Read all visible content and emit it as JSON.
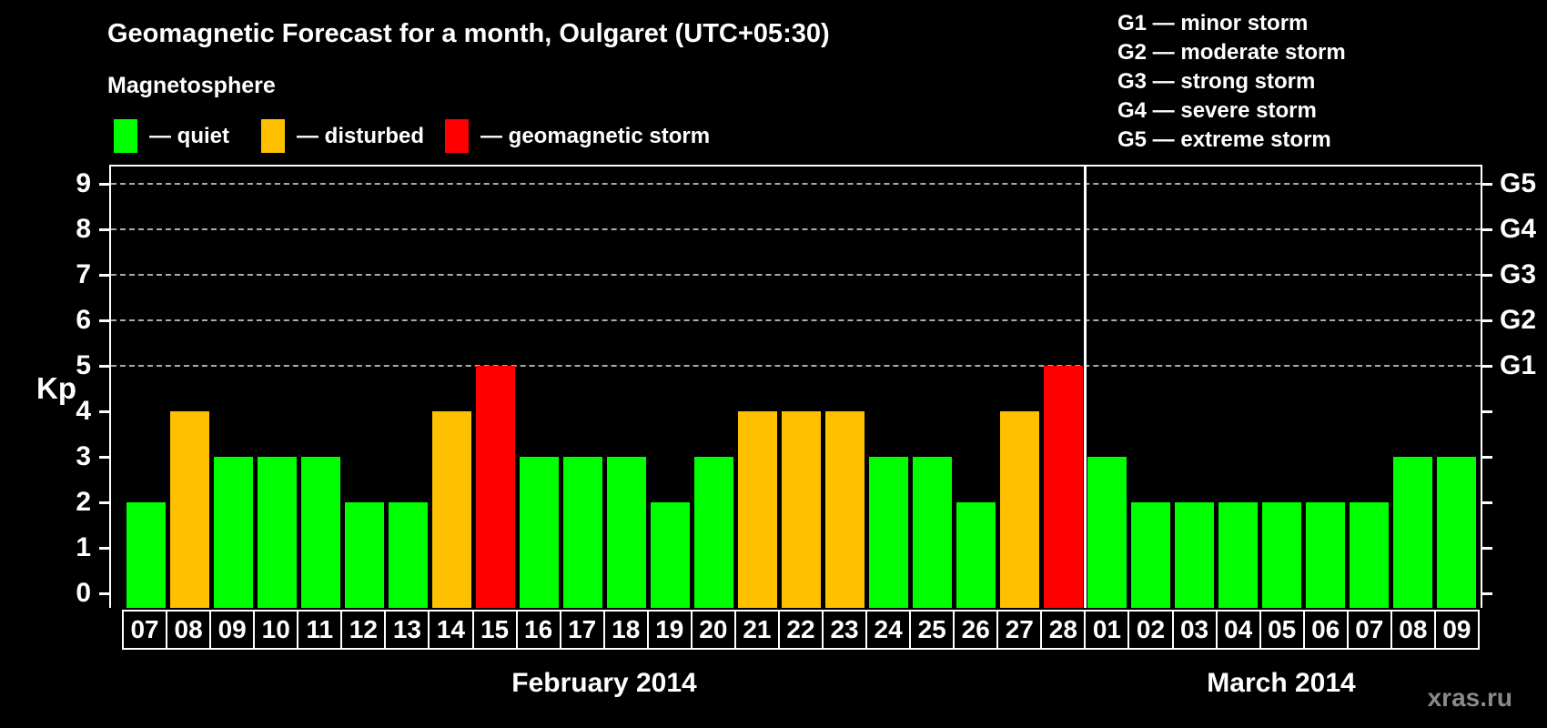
{
  "watermark": "xras.ru",
  "chart_data": {
    "type": "bar",
    "title": "Geomagnetic Forecast for a month, Oulgaret (UTC+05:30)",
    "legend_title": "Magnetosphere",
    "legend_items": [
      {
        "label": "— quiet",
        "status": "quiet",
        "color": "#00ff00"
      },
      {
        "label": "— disturbed",
        "status": "disturbed",
        "color": "#ffc000"
      },
      {
        "label": "— geomagnetic storm",
        "status": "storm",
        "color": "#ff0000"
      }
    ],
    "storm_scale": [
      "G1 — minor storm",
      "G2 — moderate storm",
      "G3 — strong storm",
      "G4 — severe storm",
      "G5 — extreme storm"
    ],
    "ylabel": "Kp",
    "xlabel": "",
    "ylim": [
      0,
      9
    ],
    "yticks": [
      0,
      1,
      2,
      3,
      4,
      5,
      6,
      7,
      8,
      9
    ],
    "gridlines_kp": [
      5,
      6,
      7,
      8,
      9
    ],
    "grid": "dashed-horizontal",
    "legend_position": "top",
    "right_axis": [
      {
        "text": "G1",
        "kp": 5
      },
      {
        "text": "G2",
        "kp": 6
      },
      {
        "text": "G3",
        "kp": 7
      },
      {
        "text": "G4",
        "kp": 8
      },
      {
        "text": "G5",
        "kp": 9
      }
    ],
    "status_colors": {
      "quiet": "#00ff00",
      "disturbed": "#ffc000",
      "storm": "#ff0000"
    },
    "months": [
      {
        "label": "February 2014",
        "bars": [
          {
            "day": "07",
            "kp": 2,
            "status": "quiet"
          },
          {
            "day": "08",
            "kp": 4,
            "status": "disturbed"
          },
          {
            "day": "09",
            "kp": 3,
            "status": "quiet"
          },
          {
            "day": "10",
            "kp": 3,
            "status": "quiet"
          },
          {
            "day": "11",
            "kp": 3,
            "status": "quiet"
          },
          {
            "day": "12",
            "kp": 2,
            "status": "quiet"
          },
          {
            "day": "13",
            "kp": 2,
            "status": "quiet"
          },
          {
            "day": "14",
            "kp": 4,
            "status": "disturbed"
          },
          {
            "day": "15",
            "kp": 5,
            "status": "storm"
          },
          {
            "day": "16",
            "kp": 3,
            "status": "quiet"
          },
          {
            "day": "17",
            "kp": 3,
            "status": "quiet"
          },
          {
            "day": "18",
            "kp": 3,
            "status": "quiet"
          },
          {
            "day": "19",
            "kp": 2,
            "status": "quiet"
          },
          {
            "day": "20",
            "kp": 3,
            "status": "quiet"
          },
          {
            "day": "21",
            "kp": 4,
            "status": "disturbed"
          },
          {
            "day": "22",
            "kp": 4,
            "status": "disturbed"
          },
          {
            "day": "23",
            "kp": 4,
            "status": "disturbed"
          },
          {
            "day": "24",
            "kp": 3,
            "status": "quiet"
          },
          {
            "day": "25",
            "kp": 3,
            "status": "quiet"
          },
          {
            "day": "26",
            "kp": 2,
            "status": "quiet"
          },
          {
            "day": "27",
            "kp": 4,
            "status": "disturbed"
          },
          {
            "day": "28",
            "kp": 5,
            "status": "storm"
          }
        ]
      },
      {
        "label": "March 2014",
        "bars": [
          {
            "day": "01",
            "kp": 3,
            "status": "quiet"
          },
          {
            "day": "02",
            "kp": 2,
            "status": "quiet"
          },
          {
            "day": "03",
            "kp": 2,
            "status": "quiet"
          },
          {
            "day": "04",
            "kp": 2,
            "status": "quiet"
          },
          {
            "day": "05",
            "kp": 2,
            "status": "quiet"
          },
          {
            "day": "06",
            "kp": 2,
            "status": "quiet"
          },
          {
            "day": "07",
            "kp": 2,
            "status": "quiet"
          },
          {
            "day": "08",
            "kp": 3,
            "status": "quiet"
          },
          {
            "day": "09",
            "kp": 3,
            "status": "quiet"
          }
        ]
      }
    ]
  }
}
